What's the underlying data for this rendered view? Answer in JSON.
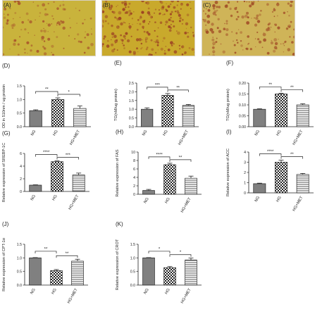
{
  "figure": {
    "micrographs": [
      {
        "label": "(A)",
        "bg": "#c9b33c",
        "stain": "#a8542a",
        "density": 0.45
      },
      {
        "label": "(B)",
        "bg": "#c9a92c",
        "stain": "#9b3f22",
        "density": 0.85
      },
      {
        "label": "(C)",
        "bg": "#cfb458",
        "stain": "#a04a25",
        "density": 0.6
      }
    ],
    "colors": {
      "axis": "#222222",
      "bar_outline": "#222222",
      "ng_fill": "#808080"
    }
  },
  "chart_data": [
    {
      "panel": "(D)",
      "type": "bar",
      "categories": [
        "NG",
        "HG",
        "HG+MET"
      ],
      "values": [
        0.59,
        1.0,
        0.67
      ],
      "errors": [
        0.03,
        0.06,
        0.09
      ],
      "ylabel": "OD in 510nm / ug protein",
      "ylim": [
        0,
        1.5
      ],
      "yticks": [
        "0.0",
        "0.5",
        "1.0",
        "1.5"
      ],
      "annotations": [
        {
          "from": 0,
          "to": 1,
          "text": "**"
        },
        {
          "from": 1,
          "to": 2,
          "text": "*"
        }
      ]
    },
    {
      "panel": "(E)",
      "type": "bar",
      "categories": [
        "NG",
        "HG",
        "HG+MET"
      ],
      "values": [
        1.0,
        1.8,
        1.22
      ],
      "errors": [
        0.08,
        0.1,
        0.05
      ],
      "ylabel": "TG(nM/ug protein)",
      "ylim": [
        0,
        2.5
      ],
      "yticks": [
        "0.0",
        "0.5",
        "1.0",
        "1.5",
        "2.0",
        "2.5"
      ],
      "annotations": [
        {
          "from": 0,
          "to": 1,
          "text": "***"
        },
        {
          "from": 1,
          "to": 2,
          "text": "**"
        }
      ]
    },
    {
      "panel": "(F)",
      "type": "bar",
      "categories": [
        "NG",
        "HG",
        "HG+MET"
      ],
      "values": [
        0.08,
        0.15,
        0.1
      ],
      "errors": [
        0.002,
        0.003,
        0.005
      ],
      "ylabel": "TG(nM/ug protein)",
      "ylim": [
        0,
        0.2
      ],
      "yticks": [
        "0.00",
        "0.05",
        "0.10",
        "0.15",
        "0.20"
      ],
      "annotations": [
        {
          "from": 0,
          "to": 1,
          "text": "**"
        },
        {
          "from": 1,
          "to": 2,
          "text": "**"
        }
      ]
    },
    {
      "panel": "(G)",
      "type": "bar",
      "categories": [
        "NG",
        "HG",
        "HG+MET"
      ],
      "values": [
        1.0,
        4.7,
        2.6
      ],
      "errors": [
        0.05,
        0.12,
        0.3
      ],
      "ylabel": "Relative expression of SREBP-1C",
      "ylim": [
        0,
        6
      ],
      "yticks": [
        "0",
        "2",
        "4",
        "6"
      ],
      "annotations": [
        {
          "from": 0,
          "to": 1,
          "text": "****"
        },
        {
          "from": 1,
          "to": 2,
          "text": "***"
        }
      ]
    },
    {
      "panel": "(H)",
      "type": "bar",
      "categories": [
        "NG",
        "HG",
        "HG+MET"
      ],
      "values": [
        0.9,
        7.0,
        3.8
      ],
      "errors": [
        0.25,
        0.35,
        0.5
      ],
      "ylabel": "Relative expression of FAS",
      "ylim": [
        0,
        10
      ],
      "yticks": [
        "0",
        "2",
        "4",
        "6",
        "8",
        "10"
      ],
      "annotations": [
        {
          "from": 0,
          "to": 1,
          "text": "****"
        },
        {
          "from": 1,
          "to": 2,
          "text": "**"
        }
      ]
    },
    {
      "panel": "(I)",
      "type": "bar",
      "categories": [
        "NG",
        "HG",
        "HG+MET"
      ],
      "values": [
        0.9,
        3.0,
        1.8
      ],
      "errors": [
        0.05,
        0.2,
        0.1
      ],
      "ylabel": "Relative expression of ACC",
      "ylim": [
        0,
        4
      ],
      "yticks": [
        "0",
        "1",
        "2",
        "3",
        "4"
      ],
      "annotations": [
        {
          "from": 0,
          "to": 1,
          "text": "****"
        },
        {
          "from": 1,
          "to": 2,
          "text": "**"
        }
      ]
    },
    {
      "panel": "(J)",
      "type": "bar",
      "categories": [
        "NG",
        "HG",
        "HG+MET"
      ],
      "values": [
        1.0,
        0.53,
        0.88
      ],
      "errors": [
        0.01,
        0.04,
        0.07
      ],
      "ylabel": "Relative expression of CPT-1α",
      "ylim": [
        0,
        1.5
      ],
      "yticks": [
        "0.0",
        "0.5",
        "1.0",
        "1.5"
      ],
      "annotations": [
        {
          "from": 0,
          "to": 1,
          "text": "**"
        },
        {
          "from": 1,
          "to": 2,
          "text": "**"
        }
      ]
    },
    {
      "panel": "(K)",
      "type": "bar",
      "categories": [
        "NG",
        "HG",
        "HG+MET"
      ],
      "values": [
        1.0,
        0.64,
        0.92
      ],
      "errors": [
        0.01,
        0.04,
        0.07
      ],
      "ylabel": "Relative expression of CROT",
      "ylim": [
        0,
        1.5
      ],
      "yticks": [
        "0.0",
        "0.5",
        "1.0",
        "1.5"
      ],
      "annotations": [
        {
          "from": 0,
          "to": 1,
          "text": "*"
        },
        {
          "from": 1,
          "to": 2,
          "text": "*"
        }
      ]
    }
  ]
}
